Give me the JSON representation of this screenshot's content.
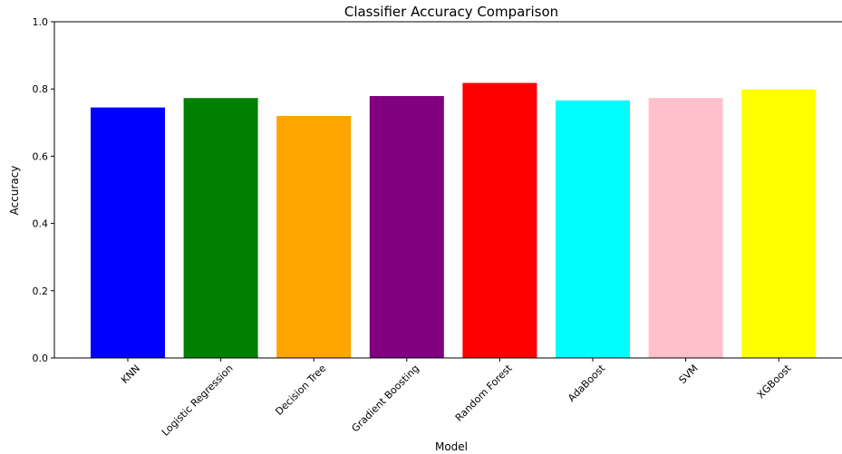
{
  "chart_data": {
    "type": "bar",
    "title": "Classifier Accuracy Comparison",
    "xlabel": "Model",
    "ylabel": "Accuracy",
    "categories": [
      "KNN",
      "Logistic Regression",
      "Decision Tree",
      "Gradient Boosting",
      "Random Forest",
      "AdaBoost",
      "SVM",
      "XGBoost"
    ],
    "values": [
      0.745,
      0.773,
      0.72,
      0.779,
      0.818,
      0.766,
      0.773,
      0.799
    ],
    "colors": [
      "#0000ff",
      "#008000",
      "#ffa500",
      "#800080",
      "#ff0000",
      "#00ffff",
      "#ffc0cb",
      "#ffff00"
    ],
    "ylim": [
      0,
      1.0
    ],
    "yticks": [
      "0.0",
      "0.2",
      "0.4",
      "0.6",
      "0.8",
      "1.0"
    ],
    "grid": false,
    "legend": "none"
  }
}
